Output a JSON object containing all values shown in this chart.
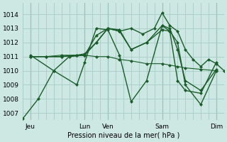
{
  "background_color": "#cde8e2",
  "grid_color": "#a8ccca",
  "line_color": "#1a5c2a",
  "xlabel_text": "Pression niveau de la mer( hPa )",
  "ylim": [
    1006.5,
    1014.8
  ],
  "yticks": [
    1007,
    1008,
    1009,
    1010,
    1011,
    1012,
    1013,
    1014
  ],
  "xlim": [
    0,
    52
  ],
  "xtick_positions": [
    2,
    16,
    22,
    36,
    50
  ],
  "xtick_labels": [
    "Jeu",
    "Lun",
    "Ven",
    "Sam",
    "Dim"
  ],
  "vline_positions": [
    2,
    16,
    22,
    36,
    50
  ],
  "series": [
    {
      "x": [
        0,
        4,
        8,
        12,
        16,
        19,
        22,
        25,
        28,
        31,
        34,
        36,
        38,
        40,
        42,
        44,
        46,
        48,
        50,
        52
      ],
      "y": [
        1006.6,
        1008.0,
        1010.0,
        1011.0,
        1011.1,
        1012.0,
        1013.0,
        1012.8,
        1013.0,
        1012.6,
        1013.0,
        1014.1,
        1013.2,
        1012.8,
        1011.5,
        1010.8,
        1010.3,
        1010.8,
        1010.5,
        1010.0
      ],
      "style": "-",
      "marker": "D",
      "markersize": 2.5,
      "linewidth": 1.0
    },
    {
      "x": [
        2,
        6,
        10,
        14,
        16,
        19,
        22,
        25,
        28,
        32,
        36,
        38,
        40,
        42,
        46,
        50
      ],
      "y": [
        1011.0,
        1011.0,
        1011.0,
        1011.1,
        1011.1,
        1012.5,
        1013.0,
        1012.8,
        1011.5,
        1012.0,
        1013.2,
        1013.0,
        1011.5,
        1009.3,
        1008.6,
        1010.1
      ],
      "style": "-",
      "marker": "D",
      "markersize": 2.5,
      "linewidth": 1.0
    },
    {
      "x": [
        2,
        6,
        10,
        14,
        16,
        19,
        22,
        25,
        28,
        32,
        36,
        38,
        40,
        42,
        46,
        50
      ],
      "y": [
        1011.0,
        1011.0,
        1011.0,
        1011.1,
        1011.2,
        1012.0,
        1013.0,
        1012.9,
        1011.5,
        1012.0,
        1012.9,
        1012.8,
        1012.0,
        1009.0,
        1007.6,
        1010.0
      ],
      "style": "-",
      "marker": "D",
      "markersize": 2.5,
      "linewidth": 1.0
    },
    {
      "x": [
        2,
        6,
        10,
        14,
        16,
        19,
        22,
        25,
        28,
        32,
        36,
        38,
        40,
        42,
        46,
        50
      ],
      "y": [
        1011.0,
        1011.0,
        1011.1,
        1011.1,
        1011.1,
        1011.0,
        1011.0,
        1010.8,
        1010.7,
        1010.5,
        1010.5,
        1010.4,
        1010.3,
        1010.2,
        1010.1,
        1010.0
      ],
      "style": "-",
      "marker": "D",
      "markersize": 2.5,
      "linewidth": 0.8
    },
    {
      "x": [
        2,
        8,
        14,
        16,
        19,
        22,
        25,
        28,
        32,
        36,
        38,
        40,
        42,
        46,
        50
      ],
      "y": [
        1011.1,
        1010.0,
        1009.0,
        1010.6,
        1013.0,
        1012.9,
        1011.1,
        1007.8,
        1009.3,
        1013.2,
        1012.8,
        1009.3,
        1008.6,
        1008.4,
        1010.6
      ],
      "style": "-",
      "marker": "D",
      "markersize": 2.5,
      "linewidth": 1.0
    }
  ]
}
